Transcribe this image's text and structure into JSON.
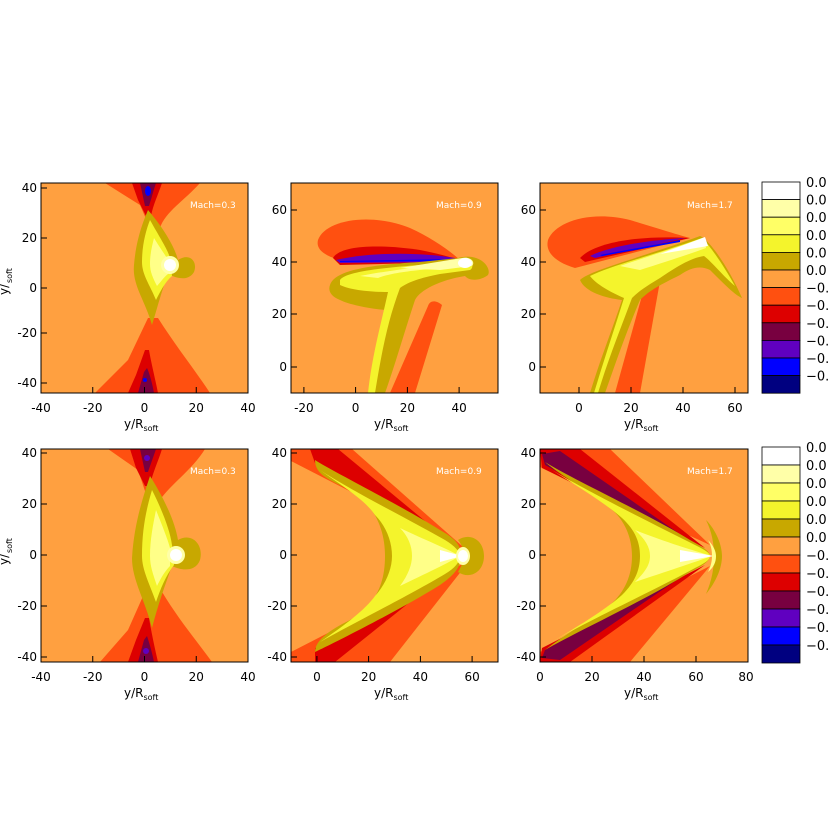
{
  "chart_data": [
    {
      "type": "heatmap",
      "annotation": "Mach=0.3",
      "xlabel": "y/R",
      "xlabel_sub": "soft",
      "ylabel_visible": "y/",
      "ylabel_sub_visible": "soft",
      "xlim": [
        -40,
        40
      ],
      "ylim": [
        -42,
        42
      ],
      "xticks": [
        -40,
        -20,
        0,
        20,
        40
      ],
      "yticks": [
        -40,
        -20,
        0,
        20,
        40
      ]
    },
    {
      "type": "heatmap",
      "annotation": "Mach=0.9",
      "xlabel": "y/R",
      "xlabel_sub": "soft",
      "xlim": [
        -25,
        55
      ],
      "ylim": [
        -10,
        70
      ],
      "xticks": [
        -20,
        0,
        20,
        40
      ],
      "yticks": [
        0,
        20,
        40,
        60
      ]
    },
    {
      "type": "heatmap",
      "annotation": "Mach=1.7",
      "xlabel": "y/R",
      "xlabel_sub": "soft",
      "xlim": [
        -15,
        65
      ],
      "ylim": [
        -10,
        70
      ],
      "xticks": [
        0,
        20,
        40,
        60
      ],
      "yticks": [
        0,
        20,
        40,
        60
      ]
    },
    {
      "type": "heatmap",
      "annotation": "Mach=0.3",
      "xlabel": "y/R",
      "xlabel_sub": "soft",
      "ylabel_visible": "y/",
      "ylabel_sub_visible": "soft",
      "xlim": [
        -40,
        40
      ],
      "ylim": [
        -42,
        42
      ],
      "xticks": [
        -40,
        -20,
        0,
        20,
        40
      ],
      "yticks": [
        -40,
        -20,
        0,
        20,
        40
      ]
    },
    {
      "type": "heatmap",
      "annotation": "Mach=0.9",
      "xlabel": "y/R",
      "xlabel_sub": "soft",
      "xlim": [
        -10,
        70
      ],
      "ylim": [
        -42,
        42
      ],
      "xticks": [
        0,
        20,
        40,
        60
      ],
      "yticks": [
        -40,
        -20,
        0,
        20,
        40
      ]
    },
    {
      "type": "heatmap",
      "annotation": "Mach=1.7",
      "xlabel": "y/R",
      "xlabel_sub": "soft",
      "xlim": [
        0,
        80
      ],
      "ylim": [
        -42,
        42
      ],
      "xticks": [
        0,
        20,
        40,
        60,
        80
      ],
      "yticks": [
        -40,
        -20,
        0,
        20,
        40
      ]
    }
  ],
  "colorbar": {
    "colors": [
      "#ffffff",
      "#ffffa8",
      "#ffff66",
      "#f4f42c",
      "#c8a800",
      "#ffa040",
      "#ff5010",
      "#dd0000",
      "#780040",
      "#6000c0",
      "#0000ff",
      "#000080"
    ],
    "labels_visible": [
      "0.0",
      "0.0",
      "0.0",
      "0.0",
      "0.0",
      "0.0",
      "−0.",
      "−0.",
      "−0.",
      "−0.",
      "−0.",
      "−0."
    ]
  },
  "colors": {
    "background": "#ffa040",
    "ochre": "#c8a800",
    "yellow": "#f4f42c",
    "light_yellow": "#ffff88",
    "white": "#ffffff",
    "orange_red": "#ff5010",
    "red": "#dd0000",
    "dark_red": "#780040",
    "purple": "#6000c0",
    "blue": "#0000ff",
    "navy": "#000080"
  }
}
